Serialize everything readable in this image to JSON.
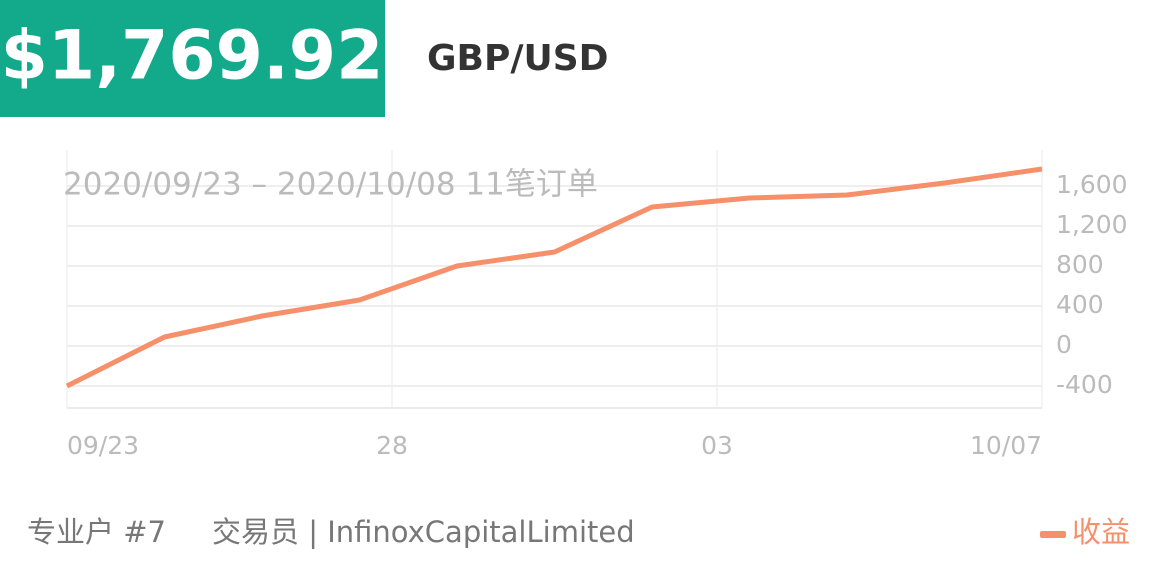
{
  "header": {
    "amount": "$1,769.92",
    "pair": "GBP/USD"
  },
  "chart_data": {
    "type": "line",
    "subtitle": "2020/09/23 – 2020/10/08  11笔订单",
    "categories": [
      null,
      null,
      null,
      null,
      null,
      null,
      null,
      null,
      null,
      null,
      null
    ],
    "xtick_labels": [
      "09/23",
      "28",
      "03",
      "10/07"
    ],
    "series": [
      {
        "name": "收益",
        "color": "#f5906a",
        "values": [
          -400,
          90,
          300,
          460,
          800,
          940,
          1390,
          1480,
          1510,
          1630,
          1770
        ]
      }
    ],
    "ylim": [
      -620,
      1960
    ],
    "yticks": [
      -400,
      0,
      {
        "value": 400,
        "label": "400"
      },
      {
        "value": 800,
        "label": "800"
      },
      {
        "value": 1200,
        "label": "1,200"
      },
      {
        "value": 1600,
        "label": "1,600"
      }
    ],
    "grid": true
  },
  "footer": {
    "account": "专业户 #7",
    "trader": "交易员 | InfinoxCapitalLimited"
  }
}
